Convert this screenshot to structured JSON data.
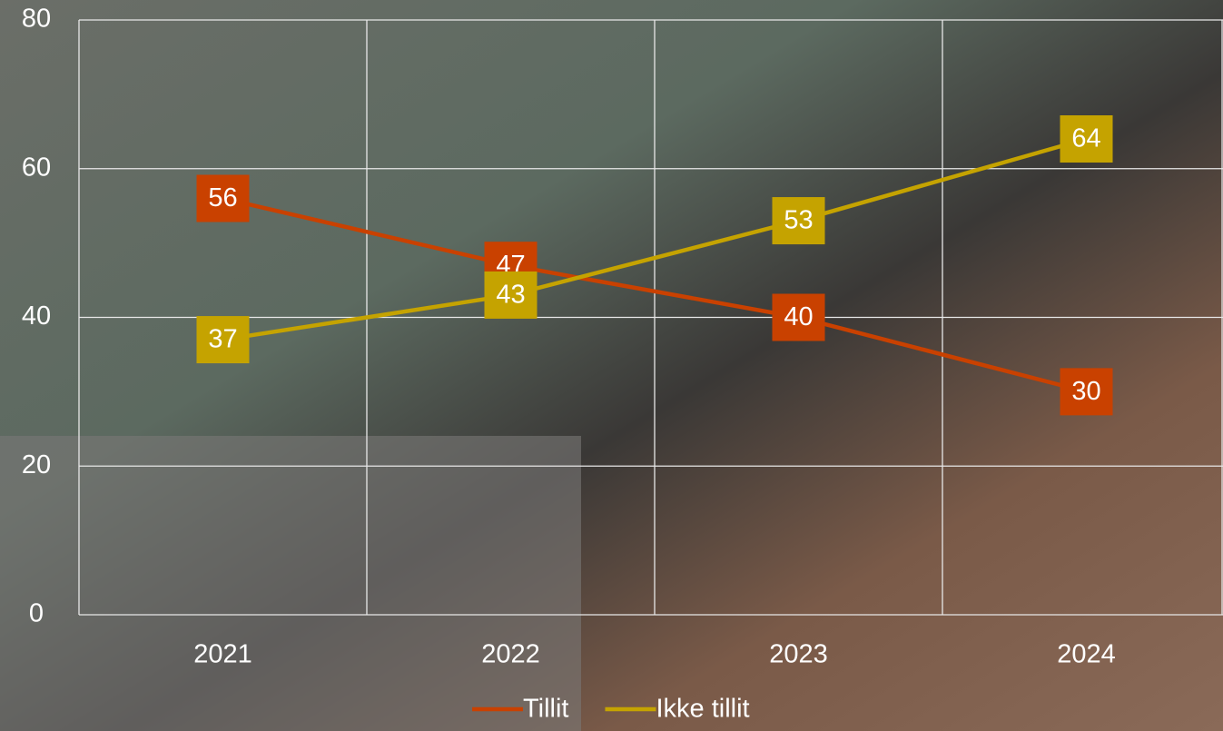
{
  "chart_data": {
    "type": "line",
    "categories": [
      "2021",
      "2022",
      "2023",
      "2024"
    ],
    "series": [
      {
        "name": "Tillit",
        "color": "#c94100",
        "values": [
          56,
          47,
          40,
          30
        ]
      },
      {
        "name": "Ikke tillit",
        "color": "#c5a300",
        "values": [
          37,
          43,
          53,
          64
        ]
      }
    ],
    "ylim": [
      0,
      80
    ],
    "yticks": [
      0,
      20,
      40,
      60,
      80
    ],
    "grid": true,
    "legend": "bottom"
  }
}
